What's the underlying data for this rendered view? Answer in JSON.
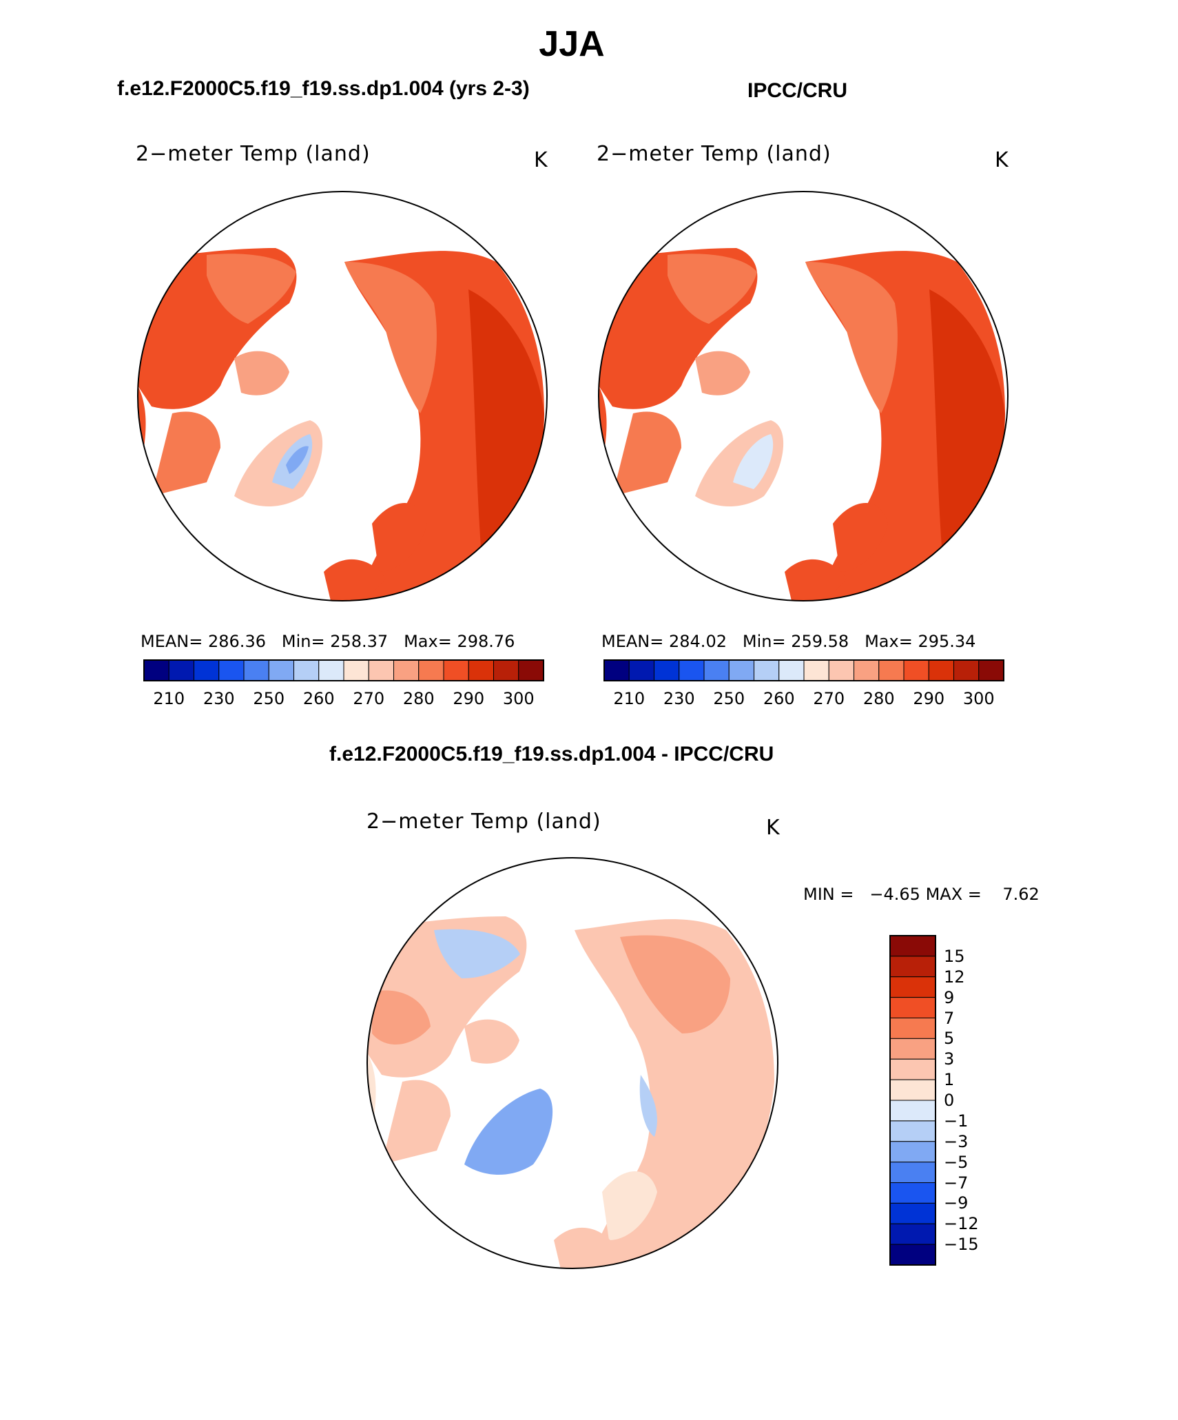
{
  "figure_title": "JJA",
  "left_panel": {
    "case": "f.e12.F2000C5.f19_f19.ss.dp1.004 (yrs 2-3)",
    "variable": "2−meter Temp (land)",
    "units": "K",
    "stats": {
      "mean_label": "MEAN=",
      "mean": "286.36",
      "min_label": "Min=",
      "min": "258.37",
      "max_label": "Max=",
      "max": "298.76"
    }
  },
  "right_panel": {
    "case": "IPCC/CRU",
    "variable": "2−meter Temp (land)",
    "units": "K",
    "stats": {
      "mean_label": "MEAN=",
      "mean": "284.02",
      "min_label": "Min=",
      "min": "259.58",
      "max_label": "Max=",
      "max": "295.34"
    }
  },
  "diff_panel": {
    "case": "f.e12.F2000C5.f19_f19.ss.dp1.004 - IPCC/CRU",
    "variable": "2−meter Temp (land)",
    "units": "K",
    "minmax": {
      "min_label": "MIN =",
      "min": "−4.65",
      "max_label": "MAX =",
      "max": "7.62"
    }
  },
  "colorbar_abs": {
    "colors": [
      "#000080",
      "#0019b0",
      "#0033d6",
      "#1a55f0",
      "#4a80f2",
      "#80a9f3",
      "#b5cff6",
      "#dce9fa",
      "#fde5d5",
      "#fcc6b1",
      "#f9a182",
      "#f67a50",
      "#f04f25",
      "#da3209",
      "#b82008",
      "#8a0a06"
    ],
    "tick_labels": [
      "210",
      "230",
      "250",
      "260",
      "270",
      "280",
      "290",
      "300"
    ]
  },
  "colorbar_diff": {
    "colors": [
      "#8a0a06",
      "#b82008",
      "#da3209",
      "#f04f25",
      "#f67a50",
      "#f9a182",
      "#fcc6b1",
      "#fde5d5",
      "#dce9fa",
      "#b5cff6",
      "#80a9f3",
      "#4a80f2",
      "#1a55f0",
      "#0033d6",
      "#0019b0",
      "#000080"
    ],
    "tick_labels": [
      "15",
      "12",
      "9",
      "7",
      "5",
      "3",
      "1",
      "0",
      "−1",
      "−3",
      "−5",
      "−7",
      "−9",
      "−12",
      "−15"
    ]
  },
  "map_colors": {
    "warm_dark": "#da3209",
    "warm": "#f04f25",
    "warm_mid": "#f67a50",
    "warm_light": "#f9a182",
    "pale_warm": "#fcc6b1",
    "pale_blue": "#dce9fa",
    "light_blue": "#b5cff6",
    "mid_blue": "#80a9f3",
    "diff_base": "#fcc6b1",
    "diff_cool": "#b5cff6"
  }
}
